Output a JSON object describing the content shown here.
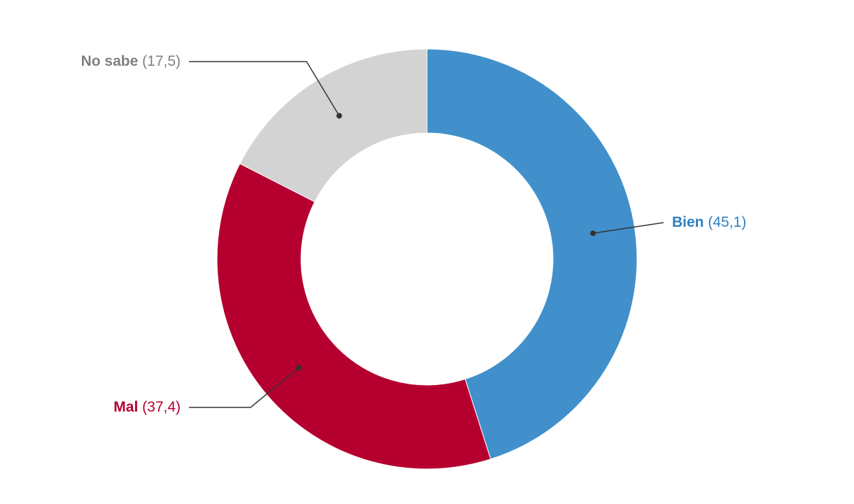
{
  "chart_data": {
    "type": "donut",
    "categories": [
      "Bien",
      "Mal",
      "No sabe"
    ],
    "values": [
      45.1,
      37.4,
      17.5
    ],
    "value_labels": [
      "(45,1)",
      "(37,4)",
      "(17,5)"
    ],
    "colors": [
      "#4190cb",
      "#b5002f",
      "#d3d3d3"
    ],
    "label_colors": [
      "#2f7fc0",
      "#b5002f",
      "#808080"
    ]
  }
}
